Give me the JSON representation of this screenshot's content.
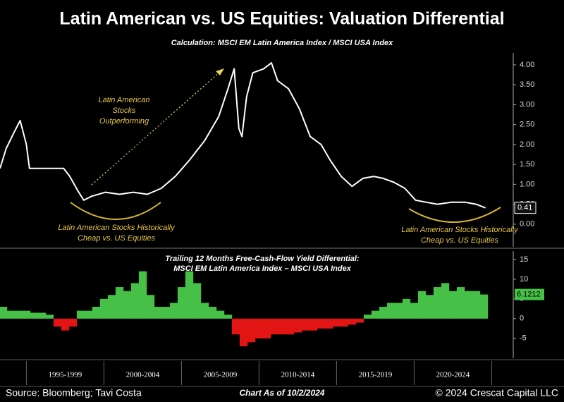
{
  "chart_data": [
    {
      "type": "line",
      "title": "Latin American vs. US Equities: Valuation Differential",
      "subtitle": "Calculation: MSCI EM Latin America Index / MSCI USA Index",
      "x": [
        1993.3,
        1993.7,
        1994.2,
        1994.6,
        1995.0,
        1995.2,
        1995.8,
        1996.5,
        1997.4,
        1997.8,
        1998.3,
        1998.7,
        1999.2,
        2000.1,
        2001.0,
        2001.9,
        2002.8,
        2003.7,
        2004.6,
        2005.5,
        2006.5,
        2007.4,
        2008.0,
        2008.4,
        2008.7,
        2008.9,
        2009.2,
        2009.6,
        2010.3,
        2010.8,
        2011.2,
        2011.9,
        2012.6,
        2013.3,
        2014.0,
        2014.6,
        2015.3,
        2016.0,
        2016.7,
        2017.4,
        2018.0,
        2018.7,
        2019.4,
        2020.1,
        2020.8,
        2021.5,
        2022.4,
        2023.3,
        2024.0,
        2024.6
      ],
      "values": [
        1.4,
        1.9,
        2.3,
        2.6,
        2.0,
        1.4,
        1.4,
        1.4,
        1.4,
        1.2,
        0.85,
        0.6,
        0.7,
        0.8,
        0.75,
        0.8,
        0.75,
        0.9,
        1.2,
        1.6,
        2.1,
        2.7,
        3.4,
        3.9,
        2.4,
        2.2,
        3.2,
        3.8,
        3.9,
        4.05,
        3.6,
        3.4,
        2.9,
        2.2,
        2.0,
        1.6,
        1.2,
        0.95,
        1.15,
        1.2,
        1.15,
        1.05,
        0.9,
        0.6,
        0.55,
        0.5,
        0.55,
        0.55,
        0.5,
        0.41
      ],
      "color": "#ffffff",
      "xlim": [
        1993.3,
        2025.3
      ],
      "ylim": [
        -0.57,
        4.3
      ],
      "yticks": [
        {
          "value": 0,
          "label": "0.00"
        },
        {
          "value": 0.5,
          "label": "0.50"
        },
        {
          "value": 1,
          "label": "1.00"
        },
        {
          "value": 1.5,
          "label": "1.50"
        },
        {
          "value": 2,
          "label": "2.00"
        },
        {
          "value": 2.5,
          "label": "2.50"
        },
        {
          "value": 3,
          "label": "3.00"
        },
        {
          "value": 3.5,
          "label": "3.50"
        },
        {
          "value": 4,
          "label": "4.00"
        }
      ],
      "annotations": [
        {
          "lines": [
            "Latin American",
            "Stocks",
            "Outperforming"
          ]
        },
        {
          "lines": [
            "Latin American Stocks Historically",
            "Cheap vs. US Equities"
          ]
        },
        {
          "lines": [
            "Latin American Stocks Historically",
            "Cheap vs. US Equities"
          ]
        }
      ]
    },
    {
      "type": "bar",
      "subtitle": [
        "Trailing 12 Months Free-Cash-Flow Yield Differential:",
        "MSCI EM Latin America Index – MSCI USA Index"
      ],
      "x": [
        1993.5,
        1994,
        1994.5,
        1995,
        1995.5,
        1996,
        1996.5,
        1997,
        1997.5,
        1998,
        1998.5,
        1999,
        1999.5,
        2000,
        2000.5,
        2001,
        2001.5,
        2002,
        2002.5,
        2003,
        2003.5,
        2004,
        2004.5,
        2005,
        2005.5,
        2006,
        2006.5,
        2007,
        2007.5,
        2008,
        2008.5,
        2009,
        2009.5,
        2010,
        2010.5,
        2011,
        2011.5,
        2012,
        2012.5,
        2013,
        2013.5,
        2014,
        2014.5,
        2015,
        2015.5,
        2016,
        2016.5,
        2017,
        2017.5,
        2018,
        2018.5,
        2019,
        2019.5,
        2020,
        2020.5,
        2021,
        2021.5,
        2022,
        2022.5,
        2023,
        2023.5,
        2024,
        2024.5
      ],
      "values": [
        3,
        2,
        2,
        2,
        1.5,
        1.5,
        1,
        -2,
        -3,
        -2,
        2,
        2,
        3,
        5,
        6,
        8,
        7,
        9,
        12,
        6,
        3,
        3,
        4,
        8,
        12,
        9,
        4,
        3,
        2,
        1,
        -4,
        -7,
        -6,
        -5,
        -5,
        -4,
        -4,
        -4,
        -3.5,
        -3,
        -3,
        -2.5,
        -2.5,
        -2,
        -2,
        -1.5,
        -1,
        1,
        2,
        3,
        4,
        4,
        5,
        4,
        7,
        6,
        8,
        9,
        7,
        8,
        7,
        7,
        6.1212
      ],
      "colors": {
        "positive": "#46c046",
        "negative": "#e31414"
      },
      "xlim": [
        1993.3,
        2025.3
      ],
      "ylim": [
        -10.4,
        17.3
      ],
      "yticks": [
        -5,
        0,
        5,
        10,
        15
      ],
      "xticks": [
        {
          "value": 1997.5,
          "label": "1995-1999"
        },
        {
          "value": 2002.5,
          "label": "2000-2004"
        },
        {
          "value": 2007.5,
          "label": "2005-2009"
        },
        {
          "value": 2012.5,
          "label": "2010-2014"
        },
        {
          "value": 2017.5,
          "label": "2015-2019"
        },
        {
          "value": 2022.5,
          "label": "2020-2024"
        }
      ]
    }
  ],
  "footer": {
    "source": "Source: Bloomberg; Tavi Costa",
    "date": "Chart As of 10/2/2024",
    "copyright": "© 2024 Crescat Capital LLC"
  }
}
